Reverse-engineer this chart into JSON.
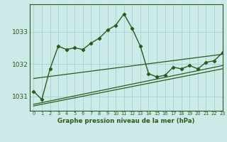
{
  "title": "Graphe pression niveau de la mer (hPa)",
  "bg_color": "#cceae8",
  "grid_color": "#aad4d2",
  "line_color": "#2d5a1b",
  "xlim": [
    -0.5,
    23
  ],
  "ylim": [
    1030.55,
    1033.85
  ],
  "yticks": [
    1031,
    1032,
    1033
  ],
  "xticks": [
    0,
    1,
    2,
    3,
    4,
    5,
    6,
    7,
    8,
    9,
    10,
    11,
    12,
    13,
    14,
    15,
    16,
    17,
    18,
    19,
    20,
    21,
    22,
    23
  ],
  "main_series": [
    [
      0,
      1031.15
    ],
    [
      1,
      1030.9
    ],
    [
      2,
      1031.85
    ],
    [
      3,
      1032.55
    ],
    [
      4,
      1032.45
    ],
    [
      5,
      1032.5
    ],
    [
      6,
      1032.45
    ],
    [
      7,
      1032.65
    ],
    [
      8,
      1032.8
    ],
    [
      9,
      1033.05
    ],
    [
      10,
      1033.2
    ],
    [
      11,
      1033.55
    ],
    [
      12,
      1033.1
    ],
    [
      13,
      1032.55
    ],
    [
      14,
      1031.7
    ],
    [
      15,
      1031.6
    ],
    [
      16,
      1031.65
    ],
    [
      17,
      1031.9
    ],
    [
      18,
      1031.85
    ],
    [
      19,
      1031.95
    ],
    [
      20,
      1031.85
    ],
    [
      21,
      1032.05
    ],
    [
      22,
      1032.1
    ],
    [
      23,
      1032.35
    ]
  ],
  "linear_line": [
    [
      0,
      1031.55
    ],
    [
      23,
      1032.3
    ]
  ],
  "band_line1_x": [
    0,
    23
  ],
  "band_line1_y": [
    1030.7,
    1031.85
  ],
  "band_line2_x": [
    0,
    23
  ],
  "band_line2_y": [
    1030.75,
    1031.95
  ]
}
